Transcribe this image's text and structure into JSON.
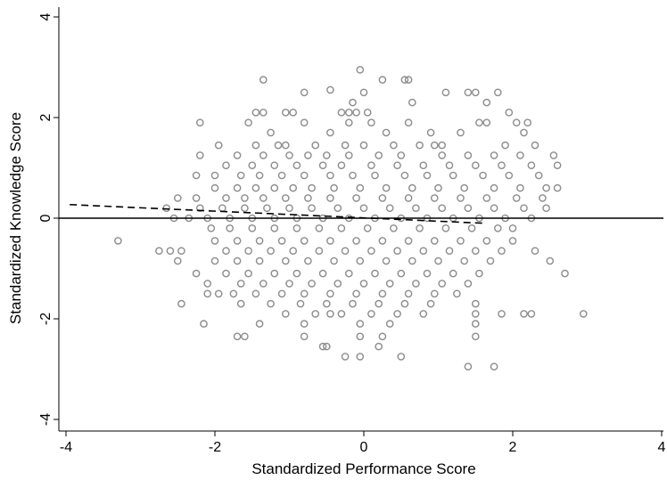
{
  "chart_data": {
    "type": "scatter",
    "title": "",
    "xlabel": "Standardized Performance Score",
    "ylabel": "Standardized Knowledge Score",
    "xlim": [
      -4,
      4
    ],
    "ylim": [
      -4,
      4
    ],
    "xticks": [
      -4,
      -2,
      0,
      2,
      4
    ],
    "yticks": [
      -4,
      -2,
      0,
      2,
      4
    ],
    "xtick_labels": [
      "-4",
      "-2",
      "0",
      "2",
      "4"
    ],
    "ytick_labels": [
      "-4",
      "-2",
      "0",
      "2",
      "4"
    ],
    "grid": false,
    "legend": "none",
    "marker": "hollow-circle",
    "marker_color": "#8c8c8c",
    "reference_line": {
      "y": 0,
      "style": "solid",
      "color": "#000000"
    },
    "fit_line": {
      "style": "dashed",
      "color": "#000000",
      "x": [
        -3.95,
        1.6
      ],
      "y": [
        0.27,
        -0.1
      ]
    },
    "points": [
      [
        -0.05,
        2.95
      ],
      [
        -1.35,
        2.75
      ],
      [
        0.25,
        2.75
      ],
      [
        0.55,
        2.75
      ],
      [
        0.6,
        2.75
      ],
      [
        -0.8,
        2.5
      ],
      [
        -0.45,
        2.55
      ],
      [
        0,
        2.5
      ],
      [
        1.1,
        2.5
      ],
      [
        1.4,
        2.5
      ],
      [
        1.5,
        2.5
      ],
      [
        1.8,
        2.5
      ],
      [
        -0.15,
        2.3
      ],
      [
        0.65,
        2.3
      ],
      [
        1.65,
        2.3
      ],
      [
        -1.45,
        2.1
      ],
      [
        -1.35,
        2.1
      ],
      [
        -1.05,
        2.1
      ],
      [
        -0.95,
        2.1
      ],
      [
        -0.3,
        2.1
      ],
      [
        -0.2,
        2.1
      ],
      [
        -0.1,
        2.1
      ],
      [
        0.05,
        2.1
      ],
      [
        1.95,
        2.1
      ],
      [
        -2.2,
        1.9
      ],
      [
        -1.55,
        1.9
      ],
      [
        -0.8,
        1.9
      ],
      [
        -0.2,
        1.9
      ],
      [
        0.1,
        1.9
      ],
      [
        0.6,
        1.9
      ],
      [
        1.55,
        1.9
      ],
      [
        1.65,
        1.9
      ],
      [
        2.05,
        1.9
      ],
      [
        2.2,
        1.9
      ],
      [
        -1.25,
        1.7
      ],
      [
        -0.45,
        1.7
      ],
      [
        0.3,
        1.7
      ],
      [
        0.9,
        1.7
      ],
      [
        1.3,
        1.7
      ],
      [
        2.15,
        1.7
      ],
      [
        -1.95,
        1.45
      ],
      [
        -1.45,
        1.45
      ],
      [
        -1.15,
        1.45
      ],
      [
        -1.05,
        1.45
      ],
      [
        -0.65,
        1.45
      ],
      [
        -0.25,
        1.45
      ],
      [
        0.0,
        1.45
      ],
      [
        0.4,
        1.45
      ],
      [
        0.75,
        1.45
      ],
      [
        0.95,
        1.45
      ],
      [
        1.05,
        1.45
      ],
      [
        1.9,
        1.45
      ],
      [
        2.3,
        1.45
      ],
      [
        -2.2,
        1.25
      ],
      [
        -1.7,
        1.25
      ],
      [
        -1.35,
        1.25
      ],
      [
        -1.0,
        1.25
      ],
      [
        -0.75,
        1.25
      ],
      [
        -0.5,
        1.25
      ],
      [
        -0.2,
        1.25
      ],
      [
        0.2,
        1.25
      ],
      [
        0.5,
        1.25
      ],
      [
        1.05,
        1.25
      ],
      [
        1.4,
        1.25
      ],
      [
        1.75,
        1.25
      ],
      [
        2.1,
        1.25
      ],
      [
        2.55,
        1.25
      ],
      [
        -1.85,
        1.05
      ],
      [
        -1.5,
        1.05
      ],
      [
        -1.2,
        1.05
      ],
      [
        -0.9,
        1.05
      ],
      [
        -0.55,
        1.05
      ],
      [
        -0.3,
        1.05
      ],
      [
        0.1,
        1.05
      ],
      [
        0.45,
        1.05
      ],
      [
        0.8,
        1.05
      ],
      [
        1.15,
        1.05
      ],
      [
        1.5,
        1.05
      ],
      [
        1.85,
        1.05
      ],
      [
        2.25,
        1.05
      ],
      [
        2.6,
        1.05
      ],
      [
        -2.25,
        0.85
      ],
      [
        -2.0,
        0.85
      ],
      [
        -1.65,
        0.85
      ],
      [
        -1.4,
        0.85
      ],
      [
        -1.1,
        0.85
      ],
      [
        -0.8,
        0.85
      ],
      [
        -0.45,
        0.85
      ],
      [
        -0.15,
        0.85
      ],
      [
        0.15,
        0.85
      ],
      [
        0.55,
        0.85
      ],
      [
        0.85,
        0.85
      ],
      [
        1.2,
        0.85
      ],
      [
        1.6,
        0.85
      ],
      [
        1.95,
        0.85
      ],
      [
        2.35,
        0.85
      ],
      [
        -2.0,
        0.6
      ],
      [
        -1.7,
        0.6
      ],
      [
        -1.45,
        0.6
      ],
      [
        -1.2,
        0.6
      ],
      [
        -0.95,
        0.6
      ],
      [
        -0.7,
        0.6
      ],
      [
        -0.4,
        0.6
      ],
      [
        -0.05,
        0.6
      ],
      [
        0.3,
        0.6
      ],
      [
        0.65,
        0.6
      ],
      [
        1.0,
        0.6
      ],
      [
        1.35,
        0.6
      ],
      [
        1.75,
        0.6
      ],
      [
        2.1,
        0.6
      ],
      [
        2.45,
        0.6
      ],
      [
        2.6,
        0.6
      ],
      [
        -2.5,
        0.4
      ],
      [
        -2.25,
        0.4
      ],
      [
        -1.85,
        0.4
      ],
      [
        -1.6,
        0.4
      ],
      [
        -1.35,
        0.4
      ],
      [
        -1.05,
        0.4
      ],
      [
        -0.75,
        0.4
      ],
      [
        -0.45,
        0.4
      ],
      [
        -0.1,
        0.4
      ],
      [
        0.25,
        0.4
      ],
      [
        0.6,
        0.4
      ],
      [
        0.95,
        0.4
      ],
      [
        1.3,
        0.4
      ],
      [
        1.65,
        0.4
      ],
      [
        2.05,
        0.4
      ],
      [
        2.4,
        0.4
      ],
      [
        -2.65,
        0.2
      ],
      [
        -2.2,
        0.2
      ],
      [
        -1.9,
        0.2
      ],
      [
        -1.6,
        0.2
      ],
      [
        -1.3,
        0.2
      ],
      [
        -1.0,
        0.2
      ],
      [
        -0.7,
        0.2
      ],
      [
        -0.35,
        0.2
      ],
      [
        0.0,
        0.2
      ],
      [
        0.35,
        0.2
      ],
      [
        0.7,
        0.2
      ],
      [
        1.05,
        0.2
      ],
      [
        1.4,
        0.2
      ],
      [
        1.75,
        0.2
      ],
      [
        2.15,
        0.2
      ],
      [
        2.45,
        0.2
      ],
      [
        -2.55,
        0.0
      ],
      [
        -2.35,
        0.0
      ],
      [
        -2.1,
        0.0
      ],
      [
        -1.8,
        0.0
      ],
      [
        -1.5,
        0.0
      ],
      [
        -1.2,
        0.0
      ],
      [
        -0.9,
        0.0
      ],
      [
        -0.55,
        0.0
      ],
      [
        -0.2,
        0.0
      ],
      [
        0.15,
        0.0
      ],
      [
        0.5,
        0.0
      ],
      [
        0.85,
        0.0
      ],
      [
        1.2,
        0.0
      ],
      [
        1.55,
        0.0
      ],
      [
        1.9,
        0.0
      ],
      [
        2.25,
        0.0
      ],
      [
        -2.05,
        -0.2
      ],
      [
        -1.8,
        -0.2
      ],
      [
        -1.5,
        -0.2
      ],
      [
        -1.2,
        -0.2
      ],
      [
        -0.9,
        -0.2
      ],
      [
        -0.6,
        -0.2
      ],
      [
        -0.3,
        -0.2
      ],
      [
        0.05,
        -0.2
      ],
      [
        0.4,
        -0.2
      ],
      [
        0.75,
        -0.2
      ],
      [
        1.1,
        -0.2
      ],
      [
        1.45,
        -0.2
      ],
      [
        1.8,
        -0.2
      ],
      [
        2.0,
        -0.2
      ],
      [
        -3.3,
        -0.45
      ],
      [
        -2.0,
        -0.45
      ],
      [
        -1.7,
        -0.45
      ],
      [
        -1.4,
        -0.45
      ],
      [
        -1.1,
        -0.45
      ],
      [
        -0.8,
        -0.45
      ],
      [
        -0.45,
        -0.45
      ],
      [
        -0.1,
        -0.45
      ],
      [
        0.25,
        -0.45
      ],
      [
        0.6,
        -0.45
      ],
      [
        0.95,
        -0.45
      ],
      [
        1.3,
        -0.45
      ],
      [
        1.65,
        -0.45
      ],
      [
        2.0,
        -0.45
      ],
      [
        -2.75,
        -0.65
      ],
      [
        -2.6,
        -0.65
      ],
      [
        -2.45,
        -0.65
      ],
      [
        -1.85,
        -0.65
      ],
      [
        -1.55,
        -0.65
      ],
      [
        -1.25,
        -0.65
      ],
      [
        -0.95,
        -0.65
      ],
      [
        -0.6,
        -0.65
      ],
      [
        -0.25,
        -0.65
      ],
      [
        0.1,
        -0.65
      ],
      [
        0.45,
        -0.65
      ],
      [
        0.8,
        -0.65
      ],
      [
        1.15,
        -0.65
      ],
      [
        1.5,
        -0.65
      ],
      [
        1.85,
        -0.65
      ],
      [
        2.3,
        -0.65
      ],
      [
        -2.5,
        -0.85
      ],
      [
        -2.0,
        -0.85
      ],
      [
        -1.7,
        -0.85
      ],
      [
        -1.4,
        -0.85
      ],
      [
        -1.05,
        -0.85
      ],
      [
        -0.75,
        -0.85
      ],
      [
        -0.4,
        -0.85
      ],
      [
        -0.05,
        -0.85
      ],
      [
        0.3,
        -0.85
      ],
      [
        0.65,
        -0.85
      ],
      [
        1.0,
        -0.85
      ],
      [
        1.35,
        -0.85
      ],
      [
        1.7,
        -0.85
      ],
      [
        2.5,
        -0.85
      ],
      [
        -2.25,
        -1.1
      ],
      [
        -1.85,
        -1.1
      ],
      [
        -1.55,
        -1.1
      ],
      [
        -1.2,
        -1.1
      ],
      [
        -0.9,
        -1.1
      ],
      [
        -0.55,
        -1.1
      ],
      [
        -0.2,
        -1.1
      ],
      [
        0.15,
        -1.1
      ],
      [
        0.5,
        -1.1
      ],
      [
        0.85,
        -1.1
      ],
      [
        1.2,
        -1.1
      ],
      [
        1.55,
        -1.1
      ],
      [
        2.7,
        -1.1
      ],
      [
        -2.1,
        -1.3
      ],
      [
        -1.65,
        -1.3
      ],
      [
        -1.35,
        -1.3
      ],
      [
        -1.0,
        -1.3
      ],
      [
        -0.7,
        -1.3
      ],
      [
        -0.35,
        -1.3
      ],
      [
        0.0,
        -1.3
      ],
      [
        0.35,
        -1.3
      ],
      [
        0.7,
        -1.3
      ],
      [
        1.05,
        -1.3
      ],
      [
        1.4,
        -1.3
      ],
      [
        -2.1,
        -1.5
      ],
      [
        -1.95,
        -1.5
      ],
      [
        -1.75,
        -1.5
      ],
      [
        -1.45,
        -1.5
      ],
      [
        -1.1,
        -1.5
      ],
      [
        -0.8,
        -1.5
      ],
      [
        -0.45,
        -1.5
      ],
      [
        -0.1,
        -1.5
      ],
      [
        0.25,
        -1.5
      ],
      [
        0.6,
        -1.5
      ],
      [
        0.95,
        -1.5
      ],
      [
        1.25,
        -1.5
      ],
      [
        -2.45,
        -1.7
      ],
      [
        -1.65,
        -1.7
      ],
      [
        -1.25,
        -1.7
      ],
      [
        -0.85,
        -1.7
      ],
      [
        -0.5,
        -1.7
      ],
      [
        -0.15,
        -1.7
      ],
      [
        0.2,
        -1.7
      ],
      [
        0.55,
        -1.7
      ],
      [
        0.9,
        -1.7
      ],
      [
        1.5,
        -1.7
      ],
      [
        -1.05,
        -1.9
      ],
      [
        -0.65,
        -1.9
      ],
      [
        -0.45,
        -1.9
      ],
      [
        -0.3,
        -1.9
      ],
      [
        0.1,
        -1.9
      ],
      [
        0.45,
        -1.9
      ],
      [
        0.8,
        -1.9
      ],
      [
        1.5,
        -1.9
      ],
      [
        1.85,
        -1.9
      ],
      [
        2.15,
        -1.9
      ],
      [
        2.25,
        -1.9
      ],
      [
        2.95,
        -1.9
      ],
      [
        -2.15,
        -2.1
      ],
      [
        -1.4,
        -2.1
      ],
      [
        -0.8,
        -2.1
      ],
      [
        -0.05,
        -2.1
      ],
      [
        0.35,
        -2.1
      ],
      [
        1.5,
        -2.1
      ],
      [
        -1.7,
        -2.35
      ],
      [
        -1.6,
        -2.35
      ],
      [
        -0.8,
        -2.35
      ],
      [
        -0.05,
        -2.35
      ],
      [
        0.25,
        -2.35
      ],
      [
        1.5,
        -2.35
      ],
      [
        -0.55,
        -2.55
      ],
      [
        -0.5,
        -2.55
      ],
      [
        0.2,
        -2.55
      ],
      [
        -0.25,
        -2.75
      ],
      [
        -0.05,
        -2.75
      ],
      [
        0.5,
        -2.75
      ],
      [
        1.4,
        -2.95
      ],
      [
        1.75,
        -2.95
      ]
    ]
  }
}
